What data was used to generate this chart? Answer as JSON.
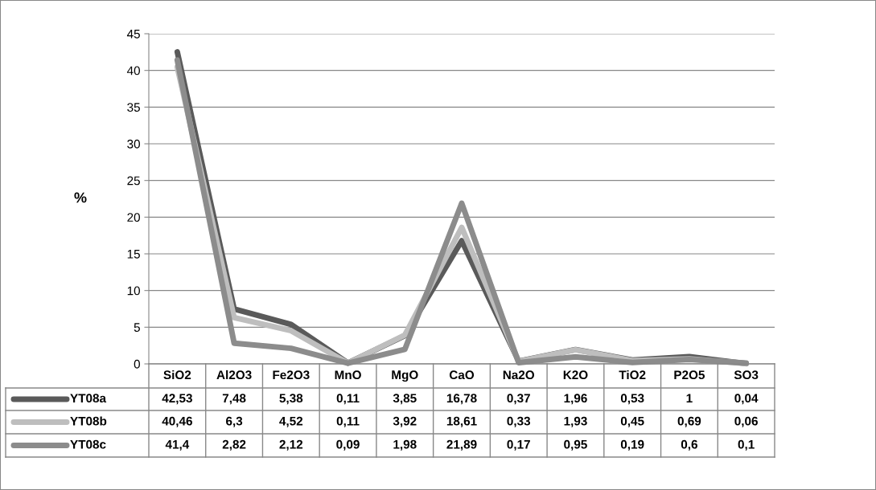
{
  "chart_data": {
    "type": "line",
    "ylabel": "%",
    "categories": [
      "SiO2",
      "Al2O3",
      "Fe2O3",
      "MnO",
      "MgO",
      "CaO",
      "Na2O",
      "K2O",
      "TiO2",
      "P2O5",
      "SO3"
    ],
    "series": [
      {
        "name": "YT08a",
        "color": "#5a5a5a",
        "values": [
          42.53,
          7.48,
          5.38,
          0.11,
          3.85,
          16.78,
          0.37,
          1.96,
          0.53,
          1,
          0.04
        ],
        "value_labels": [
          "42,53",
          "7,48",
          "5,38",
          "0,11",
          "3,85",
          "16,78",
          "0,37",
          "1,96",
          "0,53",
          "1",
          "0,04"
        ]
      },
      {
        "name": "YT08b",
        "color": "#bebebe",
        "values": [
          40.46,
          6.3,
          4.52,
          0.11,
          3.92,
          18.61,
          0.33,
          1.93,
          0.45,
          0.69,
          0.06
        ],
        "value_labels": [
          "40,46",
          "6,3",
          "4,52",
          "0,11",
          "3,92",
          "18,61",
          "0,33",
          "1,93",
          "0,45",
          "0,69",
          "0,06"
        ]
      },
      {
        "name": "YT08c",
        "color": "#8c8c8c",
        "values": [
          41.4,
          2.82,
          2.12,
          0.09,
          1.98,
          21.89,
          0.17,
          0.95,
          0.19,
          0.6,
          0.1
        ],
        "value_labels": [
          "41,4",
          "2,82",
          "2,12",
          "0,09",
          "1,98",
          "21,89",
          "0,17",
          "0,95",
          "0,19",
          "0,6",
          "0,1"
        ]
      }
    ],
    "ylim": [
      0,
      45
    ],
    "yticks": [
      0,
      5,
      10,
      15,
      20,
      25,
      30,
      35,
      40,
      45
    ],
    "grid": "y",
    "legend": "bottom",
    "marker": "none",
    "line_style": "solid"
  }
}
